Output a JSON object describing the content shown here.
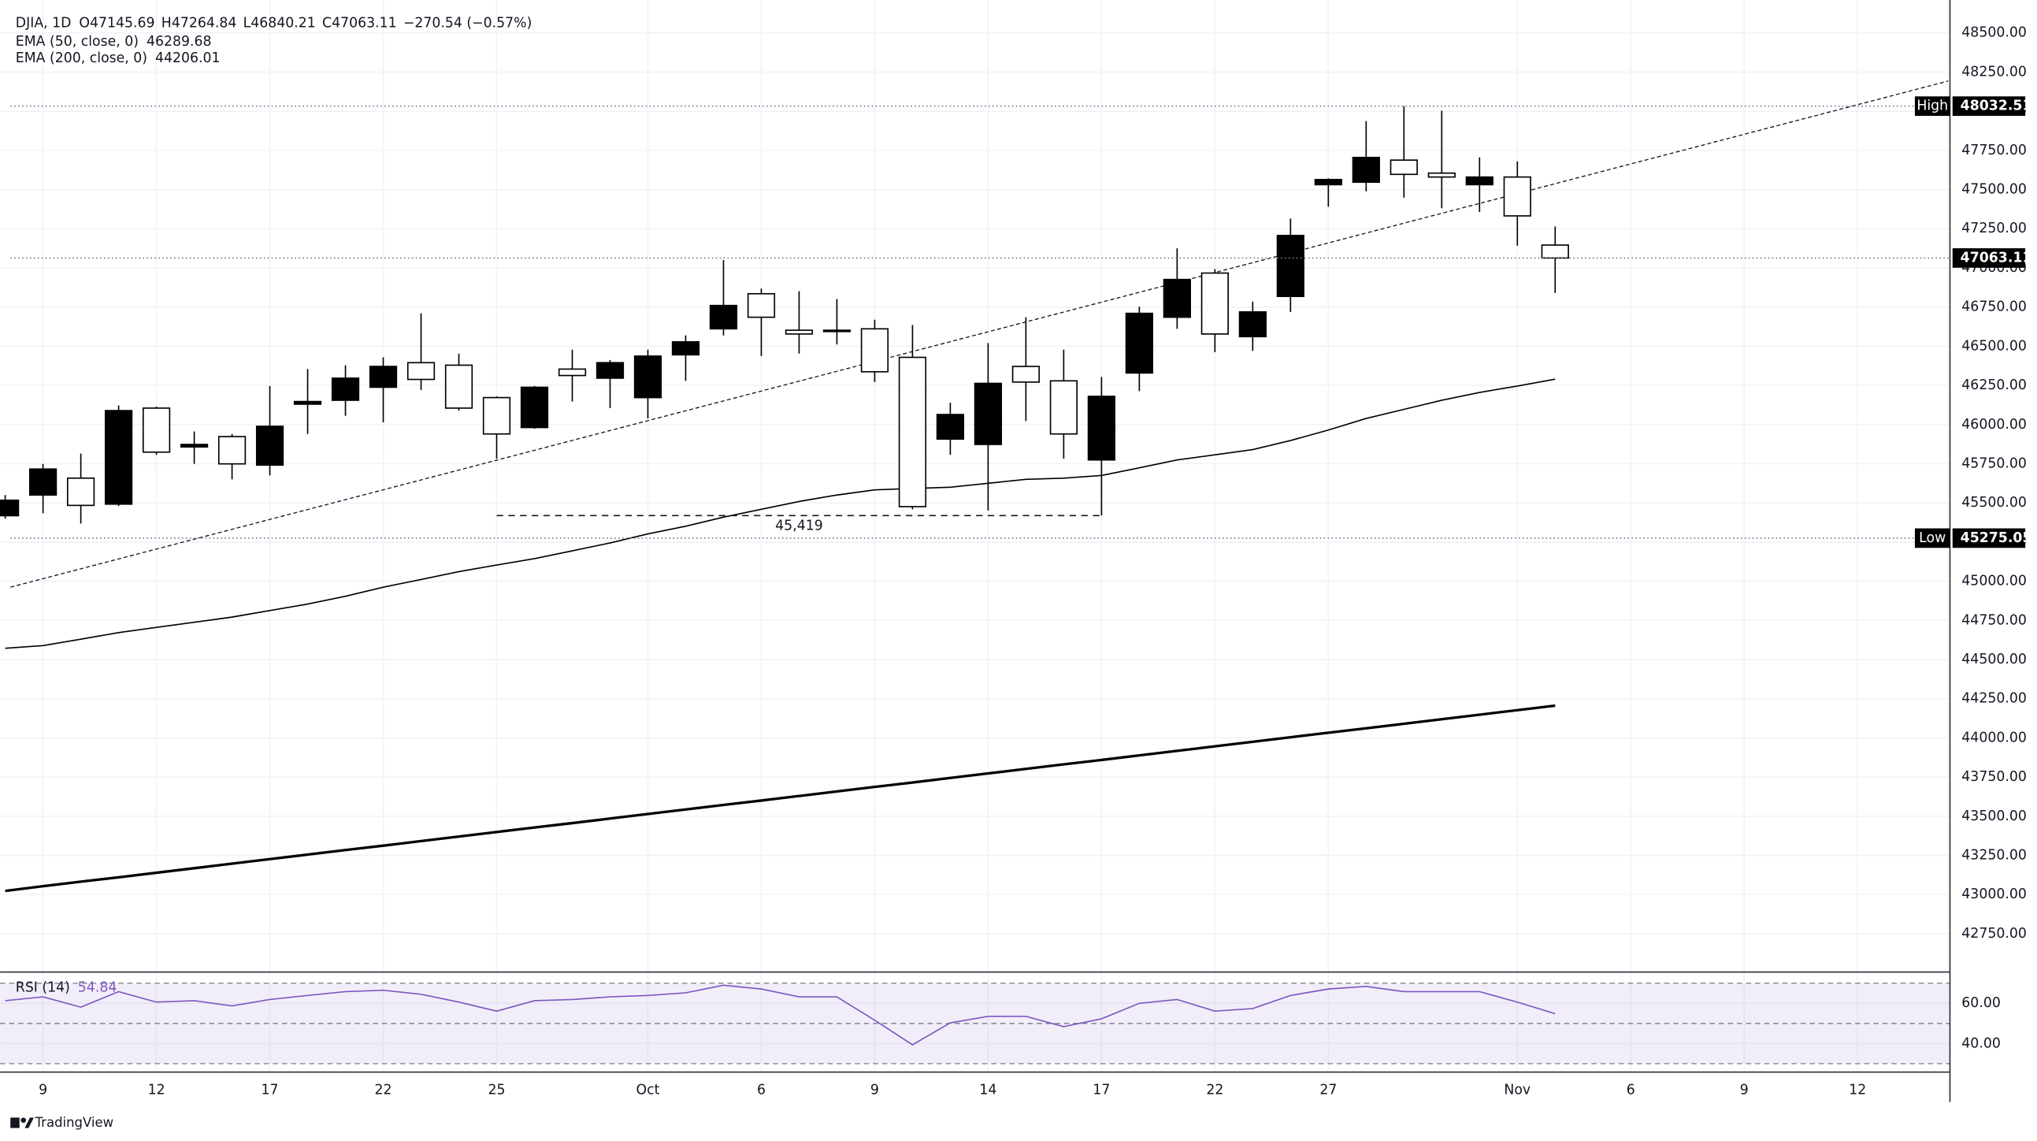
{
  "chart_data": {
    "type": "candlestick",
    "header": "DJIA, 1D",
    "ohlc_labels": [
      "O",
      "H",
      "L",
      "C"
    ],
    "change_label": "−270.54 (−0.57%)",
    "categories": [
      null,
      "9",
      null,
      null,
      "12",
      null,
      null,
      "17",
      null,
      null,
      "22",
      null,
      null,
      "25",
      null,
      null,
      null,
      "Oct",
      null,
      null,
      "6",
      null,
      null,
      "9",
      null,
      null,
      "14",
      null,
      null,
      "17",
      null,
      null,
      "22",
      null,
      null,
      "27",
      null,
      null,
      null,
      null,
      "Nov",
      null,
      null,
      "6",
      null,
      null,
      "9",
      null,
      null,
      "12",
      null,
      null
    ],
    "open": [
      45418,
      45550,
      45658,
      45492,
      46105,
      45857,
      45923,
      45741,
      46130,
      46155,
      46238,
      46395,
      46379,
      46172,
      45981,
      46354,
      46296,
      46172,
      46445,
      46611,
      46835,
      46602,
      46594,
      46611,
      46429,
      45907,
      45873,
      46371,
      46279,
      45774,
      46329,
      46685,
      46967,
      46561,
      46818,
      47531,
      47547,
      47688,
      47605,
      47531,
      47580,
      47145.69,
      null,
      null,
      null,
      null,
      null,
      null,
      null,
      null,
      null,
      null
    ],
    "high": [
      45550,
      45749,
      45815,
      46122,
      46114,
      45956,
      45940,
      46246,
      46354,
      46379,
      46429,
      46710,
      46453,
      46180,
      46246,
      46478,
      46412,
      46478,
      46569,
      47050,
      46868,
      46851,
      46801,
      46669,
      46636,
      46139,
      46520,
      46685,
      46478,
      46304,
      46752,
      47125,
      46992,
      46785,
      47315,
      47572,
      47937,
      48032.51,
      48003,
      47705,
      47680,
      47264.84,
      null,
      null,
      null,
      null,
      null,
      null,
      null,
      null,
      null,
      null
    ],
    "low": [
      45400,
      45434,
      45368,
      45480,
      45807,
      45749,
      45650,
      45675,
      45940,
      46056,
      46014,
      46221,
      46089,
      45782,
      45973,
      46147,
      46105,
      46039,
      46279,
      46569,
      46437,
      46453,
      46511,
      46271,
      45459,
      45807,
      45451,
      46023,
      45782,
      45419,
      46213,
      46611,
      46462,
      46470,
      46719,
      47390,
      47489,
      47448,
      47381,
      47357,
      47141,
      46840.21,
      null,
      null,
      null,
      null,
      null,
      null,
      null,
      null,
      null,
      null
    ],
    "close": [
      45517,
      45716,
      45484,
      46089,
      45824,
      45873,
      45749,
      45989,
      46147,
      46296,
      46371,
      46288,
      46105,
      45940,
      46238,
      46313,
      46395,
      46437,
      46528,
      46760,
      46685,
      46578,
      46602,
      46337,
      45476,
      46064,
      46263,
      46271,
      45940,
      46180,
      46710,
      46926,
      46578,
      46719,
      47207,
      47564,
      47705,
      47597,
      47580,
      47580,
      47332,
      47063.11,
      null,
      null,
      null,
      null,
      null,
      null,
      null,
      null,
      null,
      null
    ],
    "up_color": "#000000",
    "down_color": "#ffffff",
    "wick_color": "#000000",
    "ylim": [
      42530,
      48710
    ],
    "yticks": [
      {
        "value": 48500,
        "label": "48500.00"
      },
      {
        "value": 48250,
        "label": "48250.00"
      },
      {
        "value": 48000,
        "label": "48000.00"
      },
      {
        "value": 47750,
        "label": "47750.00"
      },
      {
        "value": 47500,
        "label": "47500.00"
      },
      {
        "value": 47250,
        "label": "47250.00"
      },
      {
        "value": 47000,
        "label": "47000.00"
      },
      {
        "value": 46750,
        "label": "46750.00"
      },
      {
        "value": 46500,
        "label": "46500.00"
      },
      {
        "value": 46250,
        "label": "46250.00"
      },
      {
        "value": 46000,
        "label": "46000.00"
      },
      {
        "value": 45750,
        "label": "45750.00"
      },
      {
        "value": 45500,
        "label": "45500.00"
      },
      {
        "value": 45250,
        "label": "45250.00"
      },
      {
        "value": 45000,
        "label": "45000.00"
      },
      {
        "value": 44750,
        "label": "44750.00"
      },
      {
        "value": 44500,
        "label": "44500.00"
      },
      {
        "value": 44250,
        "label": "44250.00"
      },
      {
        "value": 44000,
        "label": "44000.00"
      },
      {
        "value": 43750,
        "label": "43750.00"
      },
      {
        "value": 43500,
        "label": "43500.00"
      },
      {
        "value": 43250,
        "label": "43250.00"
      },
      {
        "value": 43000,
        "label": "43000.00"
      },
      {
        "value": 42750,
        "label": "42750.00"
      }
    ],
    "grid": true,
    "overlays": [
      {
        "name": "EMA (50, close, 0)",
        "color": "#000000",
        "width": 1,
        "values": [
          44572,
          44589,
          44630,
          44672,
          44705,
          44738,
          44771,
          44813,
          44854,
          44904,
          44962,
          45011,
          45061,
          45103,
          45144,
          45194,
          45244,
          45302,
          45351,
          45409,
          45459,
          45509,
          45550,
          45583,
          45592,
          45600,
          45625,
          45650,
          45658,
          45675,
          45724,
          45774,
          45807,
          45840,
          45898,
          45965,
          46039,
          46097,
          46155,
          46205,
          46246,
          46289.68,
          null,
          null,
          null,
          null,
          null,
          null,
          null,
          null,
          null,
          null
        ]
      },
      {
        "name": "EMA (200, close, 0)",
        "color": "#000000",
        "width": 2,
        "values": [
          43023,
          43053,
          43082,
          43110,
          43139,
          43168,
          43197,
          43226,
          43255,
          43284,
          43312,
          43341,
          43370,
          43399,
          43428,
          43456,
          43485,
          43514,
          43543,
          43572,
          43600,
          43629,
          43658,
          43687,
          43715,
          43744,
          43773,
          43802,
          43831,
          43859,
          43888,
          43917,
          43946,
          43975,
          44004,
          44033,
          44061,
          44090,
          44119,
          44148,
          44177,
          44206.01,
          null,
          null,
          null,
          null,
          null,
          null,
          null,
          null,
          null,
          null
        ]
      }
    ],
    "markers": [
      {
        "label": "High",
        "value": 48032.51
      },
      {
        "label": "Low",
        "value": 45275.05
      }
    ],
    "trendline": {
      "x": [
        0.14,
        51.4
      ],
      "y": [
        44962,
        48193
      ]
    },
    "annotation": {
      "label": "45,419",
      "value": 45419,
      "from": 13,
      "to": 29
    },
    "rsi": {
      "name": "RSI (14)",
      "color": "#7e57c2",
      "ylim": [
        25.8,
        72.3
      ],
      "yticks": [
        {
          "value": 60,
          "label": "60.00"
        },
        {
          "value": 40,
          "label": "40.00"
        }
      ],
      "bands": [
        70,
        50,
        30
      ],
      "values": [
        61.3,
        63.2,
        58.1,
        65.8,
        60.6,
        61.3,
        58.7,
        61.9,
        63.9,
        65.8,
        66.5,
        64.5,
        60.6,
        56.1,
        61.3,
        61.9,
        63.2,
        63.9,
        65.2,
        69.0,
        67.1,
        63.2,
        63.2,
        51.6,
        39.4,
        50.3,
        53.5,
        53.5,
        48.4,
        52.3,
        60.0,
        61.9,
        56.1,
        57.4,
        63.9,
        67.1,
        68.4,
        65.8,
        65.8,
        65.8,
        60.6,
        54.84,
        null,
        null,
        null,
        null,
        null,
        null,
        null,
        null,
        null,
        null
      ]
    },
    "watermark": "TradingView"
  }
}
